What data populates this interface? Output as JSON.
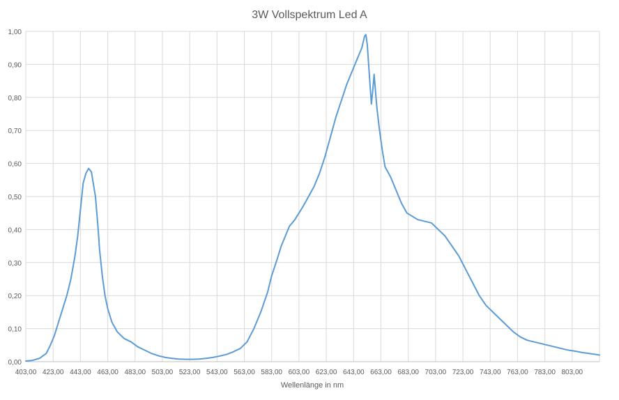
{
  "chart_data": {
    "type": "line",
    "title": "3W Vollspektrum Led A",
    "xlabel": "Wellenlänge in nm",
    "ylabel": "",
    "xlim": [
      403,
      823
    ],
    "ylim": [
      0,
      1
    ],
    "x_ticks": [
      "403,00",
      "423,00",
      "443,00",
      "463,00",
      "483,00",
      "503,00",
      "523,00",
      "543,00",
      "563,00",
      "583,00",
      "603,00",
      "623,00",
      "643,00",
      "663,00",
      "683,00",
      "703,00",
      "723,00",
      "743,00",
      "763,00",
      "783,00",
      "803,00"
    ],
    "y_ticks": [
      "0,00",
      "0,10",
      "0,20",
      "0,30",
      "0,40",
      "0,50",
      "0,60",
      "0,70",
      "0,80",
      "0,90",
      "1,00"
    ],
    "grid": true,
    "legend": "none",
    "series_color": "#5b9bd5",
    "series": [
      {
        "points": [
          [
            403,
            0.002
          ],
          [
            408,
            0.004
          ],
          [
            413,
            0.01
          ],
          [
            418,
            0.025
          ],
          [
            421,
            0.05
          ],
          [
            424,
            0.08
          ],
          [
            427,
            0.12
          ],
          [
            430,
            0.16
          ],
          [
            433,
            0.2
          ],
          [
            436,
            0.25
          ],
          [
            439,
            0.32
          ],
          [
            441,
            0.38
          ],
          [
            443,
            0.46
          ],
          [
            445,
            0.54
          ],
          [
            447,
            0.57
          ],
          [
            449,
            0.585
          ],
          [
            451,
            0.575
          ],
          [
            452,
            0.55
          ],
          [
            454,
            0.5
          ],
          [
            455,
            0.45
          ],
          [
            456,
            0.4
          ],
          [
            457,
            0.34
          ],
          [
            459,
            0.26
          ],
          [
            461,
            0.2
          ],
          [
            463,
            0.16
          ],
          [
            466,
            0.12
          ],
          [
            470,
            0.09
          ],
          [
            475,
            0.07
          ],
          [
            480,
            0.06
          ],
          [
            485,
            0.045
          ],
          [
            490,
            0.035
          ],
          [
            495,
            0.025
          ],
          [
            500,
            0.018
          ],
          [
            505,
            0.013
          ],
          [
            510,
            0.01
          ],
          [
            515,
            0.008
          ],
          [
            520,
            0.007
          ],
          [
            525,
            0.007
          ],
          [
            530,
            0.008
          ],
          [
            535,
            0.01
          ],
          [
            540,
            0.013
          ],
          [
            545,
            0.017
          ],
          [
            550,
            0.022
          ],
          [
            555,
            0.03
          ],
          [
            560,
            0.04
          ],
          [
            565,
            0.06
          ],
          [
            570,
            0.1
          ],
          [
            575,
            0.15
          ],
          [
            580,
            0.21
          ],
          [
            583,
            0.26
          ],
          [
            587,
            0.31
          ],
          [
            590,
            0.35
          ],
          [
            593,
            0.38
          ],
          [
            596,
            0.41
          ],
          [
            600,
            0.43
          ],
          [
            603,
            0.45
          ],
          [
            606,
            0.47
          ],
          [
            610,
            0.5
          ],
          [
            614,
            0.53
          ],
          [
            618,
            0.57
          ],
          [
            622,
            0.62
          ],
          [
            626,
            0.68
          ],
          [
            630,
            0.74
          ],
          [
            634,
            0.79
          ],
          [
            638,
            0.84
          ],
          [
            641,
            0.87
          ],
          [
            644,
            0.9
          ],
          [
            647,
            0.93
          ],
          [
            649,
            0.95
          ],
          [
            651,
            0.985
          ],
          [
            652,
            0.99
          ],
          [
            653,
            0.96
          ],
          [
            654,
            0.9
          ],
          [
            655,
            0.84
          ],
          [
            656,
            0.78
          ],
          [
            657,
            0.82
          ],
          [
            658,
            0.87
          ],
          [
            659,
            0.82
          ],
          [
            660,
            0.77
          ],
          [
            662,
            0.7
          ],
          [
            664,
            0.64
          ],
          [
            666,
            0.59
          ],
          [
            670,
            0.56
          ],
          [
            674,
            0.52
          ],
          [
            678,
            0.48
          ],
          [
            682,
            0.45
          ],
          [
            686,
            0.44
          ],
          [
            690,
            0.43
          ],
          [
            695,
            0.425
          ],
          [
            700,
            0.42
          ],
          [
            705,
            0.4
          ],
          [
            710,
            0.38
          ],
          [
            715,
            0.35
          ],
          [
            720,
            0.32
          ],
          [
            725,
            0.28
          ],
          [
            730,
            0.24
          ],
          [
            735,
            0.2
          ],
          [
            740,
            0.17
          ],
          [
            745,
            0.15
          ],
          [
            750,
            0.13
          ],
          [
            755,
            0.11
          ],
          [
            760,
            0.09
          ],
          [
            765,
            0.075
          ],
          [
            770,
            0.065
          ],
          [
            775,
            0.06
          ],
          [
            780,
            0.055
          ],
          [
            785,
            0.05
          ],
          [
            790,
            0.045
          ],
          [
            795,
            0.04
          ],
          [
            800,
            0.035
          ],
          [
            805,
            0.032
          ],
          [
            810,
            0.028
          ],
          [
            815,
            0.025
          ],
          [
            820,
            0.022
          ],
          [
            823,
            0.02
          ]
        ]
      }
    ]
  }
}
